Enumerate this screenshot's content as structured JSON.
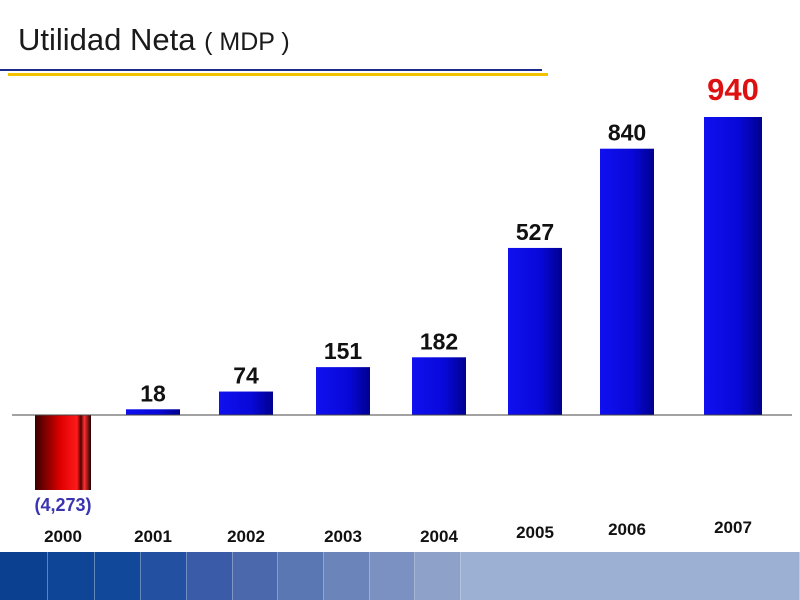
{
  "title": {
    "main": "Utilidad Neta",
    "unit": "( MDP )"
  },
  "colors": {
    "positive_bar": "#0a0ae0",
    "negative_bar": "#cc0000",
    "highlight_label": "#dd1111",
    "negative_label": "#3a34b0",
    "rule_blue": "#1c2a8c",
    "rule_yellow": "#f2c200"
  },
  "chart_data": {
    "type": "bar",
    "categories": [
      "2000",
      "2001",
      "2002",
      "2003",
      "2004",
      "2005",
      "2006",
      "2007"
    ],
    "values": [
      -4273,
      18,
      74,
      151,
      182,
      527,
      840,
      940
    ],
    "data_labels": [
      "(4,273)",
      "18",
      "74",
      "151",
      "182",
      "527",
      "840",
      "940"
    ],
    "highlight_category": "2007",
    "title": "Utilidad Neta ( MDP )",
    "xlabel": "",
    "ylabel": "",
    "grid": false,
    "legend": "none"
  },
  "footer": {
    "stripe_colors": [
      "#0b3f8f",
      "#0e4596",
      "#11489a",
      "#2450a2",
      "#3a5ca8",
      "#4b68ad",
      "#5a76b3",
      "#6b84ba",
      "#7a91c1",
      "#8ea2c9",
      "#9bb0d2"
    ]
  }
}
